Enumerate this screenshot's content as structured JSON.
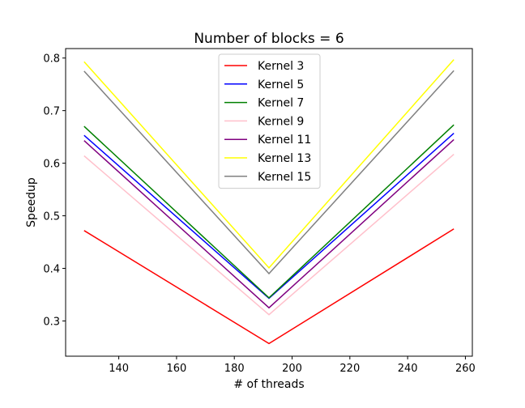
{
  "chart_data": {
    "type": "line",
    "title": "Number of blocks = 6",
    "xlabel": "# of threads",
    "ylabel": "Speedup",
    "x": [
      128,
      192,
      256
    ],
    "xlim": [
      121.6,
      262.4
    ],
    "ylim": [
      0.233,
      0.818
    ],
    "xticks": [
      140,
      160,
      180,
      200,
      220,
      240,
      260
    ],
    "yticks": [
      0.3,
      0.4,
      0.5,
      0.6,
      0.7,
      0.8
    ],
    "grid": false,
    "legend_position": "top-center",
    "series": [
      {
        "name": "Kernel 3",
        "color": "#ff0000",
        "values": [
          0.472,
          0.257,
          0.475
        ]
      },
      {
        "name": "Kernel 5",
        "color": "#0000ff",
        "values": [
          0.653,
          0.343,
          0.657
        ]
      },
      {
        "name": "Kernel 7",
        "color": "#008000",
        "values": [
          0.67,
          0.344,
          0.673
        ]
      },
      {
        "name": "Kernel 9",
        "color": "#ffc0cb",
        "values": [
          0.614,
          0.312,
          0.617
        ]
      },
      {
        "name": "Kernel 11",
        "color": "#800080",
        "values": [
          0.643,
          0.325,
          0.645
        ]
      },
      {
        "name": "Kernel 13",
        "color": "#ffff00",
        "values": [
          0.793,
          0.401,
          0.797
        ]
      },
      {
        "name": "Kernel 15",
        "color": "#808080",
        "values": [
          0.775,
          0.39,
          0.776
        ]
      }
    ]
  }
}
